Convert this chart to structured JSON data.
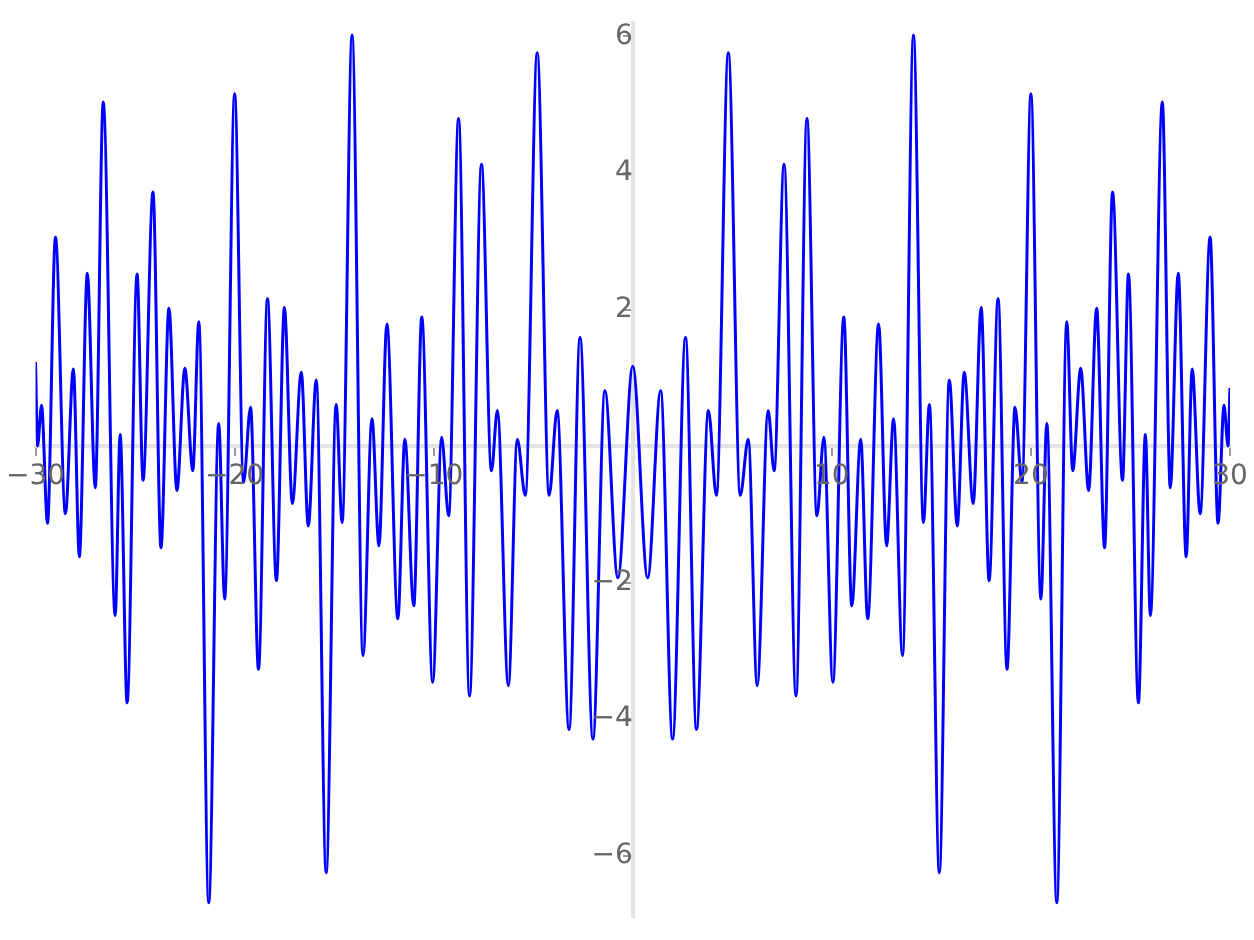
{
  "chart_data": {
    "type": "line",
    "grid": false,
    "marker": "none",
    "line_style": "solid",
    "legend": false,
    "xlim": [
      -30,
      30
    ],
    "ylim": [
      -6.9,
      6.2
    ],
    "xticks": [
      {
        "value": -30,
        "label": "−30"
      },
      {
        "value": -20,
        "label": "−20"
      },
      {
        "value": -10,
        "label": "−10"
      },
      10,
      20,
      30
    ],
    "yticks": [
      {
        "value": -6,
        "label": "−6"
      },
      {
        "value": -4,
        "label": "−4"
      },
      {
        "value": -2,
        "label": "−2"
      },
      2,
      4,
      6
    ],
    "x": [
      -30,
      -29.9,
      -29.7,
      -29.4,
      -29.0,
      -28.5,
      -28.1,
      -27.8,
      -27.4,
      -27.0,
      -26.6,
      -26.0,
      -25.75,
      -25.4,
      -24.9,
      -24.6,
      -24.1,
      -23.7,
      -23.3,
      -22.9,
      -22.5,
      -22.1,
      -21.8,
      -21.3,
      -20.8,
      -20.5,
      -20.0,
      -19.55,
      -19.2,
      -18.8,
      -18.35,
      -17.9,
      -17.5,
      -17.1,
      -16.65,
      -16.3,
      -15.9,
      -15.4,
      -14.9,
      -14.6,
      -14.1,
      -13.55,
      -13.1,
      -12.75,
      -12.35,
      -11.8,
      -11.45,
      -11.0,
      -10.6,
      -10.05,
      -9.6,
      -9.25,
      -8.75,
      -8.2,
      -7.6,
      -7.1,
      -6.8,
      -6.25,
      -5.8,
      -5.4,
      -4.8,
      -4.2,
      -3.8,
      -3.2,
      -2.65,
      -2.0,
      -1.4,
      -0.75,
      0,
      0.75,
      1.4,
      2.0,
      2.65,
      3.2,
      3.8,
      4.2,
      4.8,
      5.4,
      5.8,
      6.25,
      6.8,
      7.1,
      7.6,
      8.2,
      8.75,
      9.25,
      9.6,
      10.05,
      10.6,
      11.0,
      11.45,
      11.8,
      12.35,
      12.75,
      13.1,
      13.55,
      14.1,
      14.6,
      14.9,
      15.4,
      15.9,
      16.3,
      16.65,
      17.1,
      17.5,
      17.9,
      18.35,
      18.8,
      19.2,
      19.55,
      20.0,
      20.5,
      20.8,
      21.3,
      21.8,
      22.1,
      22.5,
      22.9,
      23.3,
      23.7,
      24.1,
      24.6,
      24.9,
      25.4,
      25.75,
      26.0,
      26.6,
      27.0,
      27.4,
      27.8,
      28.1,
      28.5,
      29.0,
      29.4,
      29.7,
      29.9,
      30
    ],
    "series": [
      {
        "color": "#0000ff",
        "values": [
          1.23,
          0.0,
          0.6,
          -1.13,
          3.06,
          -0.99,
          1.13,
          -1.62,
          2.53,
          -0.61,
          5.04,
          -2.48,
          0.17,
          -3.76,
          2.52,
          -0.5,
          3.72,
          -1.49,
          2.02,
          -0.65,
          1.14,
          -0.36,
          1.82,
          -6.69,
          0.33,
          -2.24,
          5.16,
          -0.53,
          0.57,
          -3.27,
          2.16,
          -1.97,
          2.03,
          -0.84,
          1.08,
          -1.17,
          0.97,
          -6.25,
          0.61,
          -1.12,
          6.02,
          -3.07,
          0.4,
          -1.46,
          1.79,
          -2.53,
          0.1,
          -2.34,
          1.89,
          -3.46,
          0.13,
          -1.02,
          4.8,
          -3.66,
          4.13,
          -0.36,
          0.52,
          -3.51,
          0.1,
          -0.72,
          5.76,
          -0.72,
          0.52,
          -4.15,
          1.59,
          -4.29,
          0.81,
          -1.93,
          1.17,
          -1.93,
          0.81,
          -4.29,
          1.59,
          -4.15,
          0.52,
          -0.72,
          5.76,
          -0.72,
          0.1,
          -3.51,
          0.52,
          -0.36,
          4.13,
          -3.66,
          4.8,
          -1.02,
          0.13,
          -3.46,
          1.89,
          -2.34,
          0.1,
          -2.53,
          1.79,
          -1.46,
          0.4,
          -3.07,
          6.02,
          -1.12,
          0.61,
          -6.25,
          0.97,
          -1.17,
          1.08,
          -0.84,
          2.03,
          -1.97,
          2.16,
          -3.27,
          0.57,
          -0.53,
          5.16,
          -2.24,
          0.33,
          -6.69,
          1.82,
          -0.36,
          1.14,
          -0.65,
          2.02,
          -1.49,
          3.72,
          -0.5,
          2.52,
          -3.76,
          0.17,
          -2.48,
          5.04,
          -0.61,
          2.53,
          -1.62,
          1.13,
          -0.99,
          3.06,
          -1.13,
          0.6,
          0.0,
          0.85
        ]
      }
    ]
  }
}
